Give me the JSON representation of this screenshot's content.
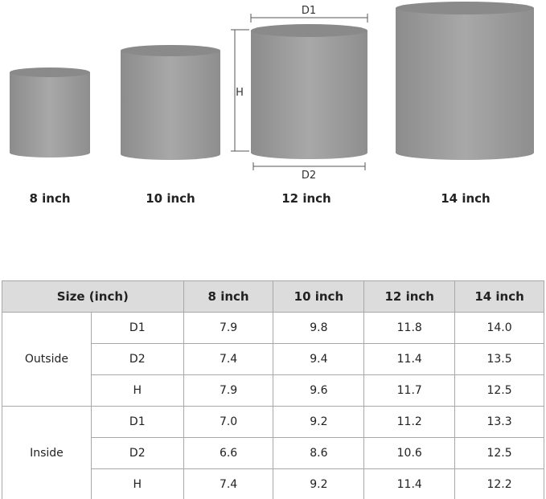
{
  "pots": [
    {
      "label": "8 inch"
    },
    {
      "label": "10 inch"
    },
    {
      "label": "12 inch"
    },
    {
      "label": "14 inch"
    }
  ],
  "dimension_labels": {
    "d1": "D1",
    "d2": "D2",
    "h": "H"
  },
  "table": {
    "header": {
      "size": "Size (inch)",
      "columns": [
        "8 inch",
        "10 inch",
        "12 inch",
        "14 inch"
      ]
    },
    "groups": [
      {
        "name": "Outside",
        "rows": [
          {
            "dim": "D1",
            "values": [
              "7.9",
              "9.8",
              "11.8",
              "14.0"
            ]
          },
          {
            "dim": "D2",
            "values": [
              "7.4",
              "9.4",
              "11.4",
              "13.5"
            ]
          },
          {
            "dim": "H",
            "values": [
              "7.9",
              "9.6",
              "11.7",
              "12.5"
            ]
          }
        ]
      },
      {
        "name": "Inside",
        "rows": [
          {
            "dim": "D1",
            "values": [
              "7.0",
              "9.2",
              "11.2",
              "13.3"
            ]
          },
          {
            "dim": "D2",
            "values": [
              "6.6",
              "8.6",
              "10.6",
              "12.5"
            ]
          },
          {
            "dim": "H",
            "values": [
              "7.4",
              "9.2",
              "11.4",
              "12.2"
            ]
          }
        ]
      }
    ]
  },
  "colors": {
    "pot": "#9a9a9a",
    "header_bg": "#dcdcdc",
    "border": "#a8a8a8"
  }
}
